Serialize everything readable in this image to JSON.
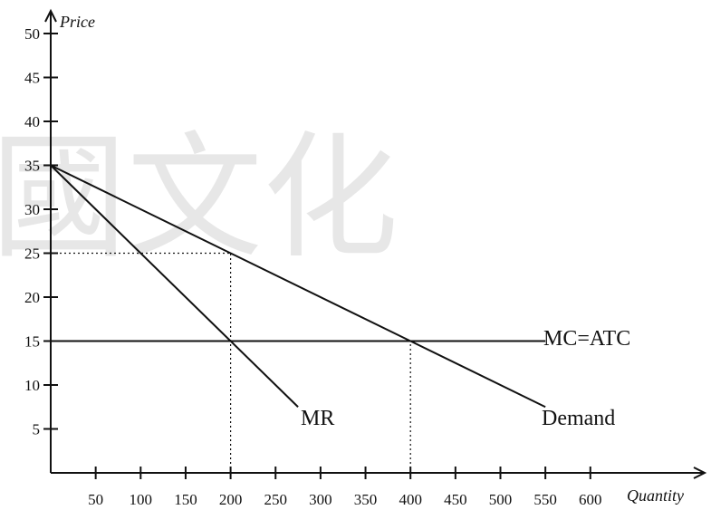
{
  "watermark": "國文化",
  "chart_data": {
    "type": "line",
    "xlabel": "Quantity",
    "ylabel": "Price",
    "xlim": [
      0,
      650
    ],
    "ylim": [
      0,
      50
    ],
    "x_ticks": [
      50,
      100,
      150,
      200,
      250,
      300,
      350,
      400,
      450,
      500,
      550,
      600
    ],
    "y_ticks": [
      5,
      10,
      15,
      20,
      25,
      30,
      35,
      40,
      45,
      50
    ],
    "series": [
      {
        "name": "Demand",
        "x": [
          0,
          200,
          400,
          550
        ],
        "y": [
          35,
          25,
          15,
          7.5
        ]
      },
      {
        "name": "MR",
        "x": [
          0,
          200,
          275
        ],
        "y": [
          35,
          15,
          7.5
        ]
      },
      {
        "name": "MC=ATC",
        "x": [
          0,
          550
        ],
        "y": [
          15,
          15
        ]
      }
    ],
    "guides": [
      {
        "x": [
          0,
          200
        ],
        "y": [
          25,
          25
        ]
      },
      {
        "x": [
          200,
          200
        ],
        "y": [
          0,
          25
        ]
      },
      {
        "x": [
          400,
          400
        ],
        "y": [
          0,
          15
        ]
      }
    ],
    "grid": false,
    "legend": "none"
  }
}
